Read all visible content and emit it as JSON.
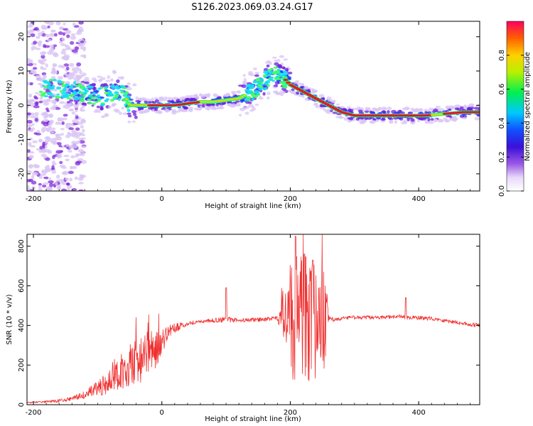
{
  "title": "S126.2023.069.03.24.G17",
  "colors": {
    "snr_line": "#f03030",
    "spectrogram_ridge": "#e8102a",
    "scatter_light": "#d9c6f4",
    "scatter_dark": "#7a1fd8"
  },
  "chart_data": [
    {
      "type": "heatmap",
      "panel": "spectrogram",
      "xlabel": "Height of straight line (km)",
      "ylabel": "Frequency (Hz)",
      "xlim": [
        -210,
        495
      ],
      "ylim": [
        -25,
        24.5
      ],
      "x_ticks": [
        -200,
        0,
        200,
        400
      ],
      "y_ticks": [
        -20,
        -10,
        0,
        10,
        20
      ],
      "grid": false,
      "colorbar": {
        "label": "Normalized spectral amplitude",
        "range": [
          0,
          1
        ],
        "ticks": [
          0.0,
          0.2,
          0.4,
          0.6,
          0.8
        ],
        "tick_labels": [
          "0.0",
          "0.2",
          "0.4",
          "0.6",
          "0.8"
        ],
        "colormap": "rainbow (purple-blue-cyan-green-yellow-orange-red)"
      },
      "ridge": {
        "x": [
          -210,
          -190,
          -170,
          -150,
          -130,
          -110,
          -90,
          -75,
          -60,
          -50,
          -40,
          -20,
          0,
          20,
          40,
          60,
          80,
          100,
          120,
          140,
          160,
          175,
          190,
          200,
          220,
          240,
          260,
          280,
          300,
          320,
          350,
          380,
          410,
          440,
          470,
          495
        ],
        "y": [
          4,
          4.5,
          5,
          4.5,
          4,
          3,
          2.5,
          4,
          3.5,
          0,
          0,
          0,
          0,
          0,
          0.5,
          1,
          1,
          1.5,
          2,
          4,
          7,
          9.5,
          8,
          6,
          4,
          2,
          0,
          -2,
          -3,
          -3,
          -3,
          -3,
          -3,
          -2.5,
          -2,
          -2
        ]
      }
    },
    {
      "type": "line",
      "panel": "snr",
      "xlabel": "Height of straight line (km)",
      "ylabel": "SNR (10 * v/v)",
      "xlim": [
        -210,
        495
      ],
      "ylim": [
        0,
        860
      ],
      "x_ticks": [
        -200,
        0,
        200,
        400
      ],
      "y_ticks": [
        0,
        200,
        400,
        600,
        800
      ],
      "grid": false,
      "series": [
        {
          "x": [
            -210,
            -180,
            -160,
            -140,
            -120,
            -100,
            -80,
            -60,
            -40,
            -20,
            -10,
            0,
            10,
            20,
            30,
            40,
            50,
            60,
            80,
            100,
            120,
            150,
            180,
            195,
            200,
            215,
            230,
            245,
            255,
            260,
            280,
            300,
            340,
            370,
            380,
            390,
            420,
            450,
            480,
            495
          ],
          "y": [
            10,
            15,
            20,
            30,
            50,
            80,
            120,
            180,
            220,
            250,
            280,
            320,
            360,
            385,
            400,
            410,
            415,
            420,
            425,
            430,
            425,
            430,
            435,
            440,
            430,
            420,
            430,
            420,
            410,
            430,
            435,
            440,
            440,
            445,
            440,
            440,
            435,
            420,
            405,
            400
          ],
          "spread": [
            3,
            5,
            8,
            10,
            20,
            40,
            60,
            100,
            120,
            120,
            100,
            60,
            40,
            25,
            15,
            12,
            10,
            10,
            10,
            15,
            10,
            10,
            12,
            150,
            300,
            350,
            350,
            300,
            250,
            15,
            10,
            10,
            10,
            10,
            12,
            10,
            10,
            10,
            10,
            10
          ],
          "peaks": [
            {
              "x": 100,
              "y": 590
            },
            {
              "x": 208,
              "y": 850
            },
            {
              "x": 222,
              "y": 760
            },
            {
              "x": 235,
              "y": 730
            },
            {
              "x": 380,
              "y": 540
            }
          ]
        }
      ]
    }
  ]
}
